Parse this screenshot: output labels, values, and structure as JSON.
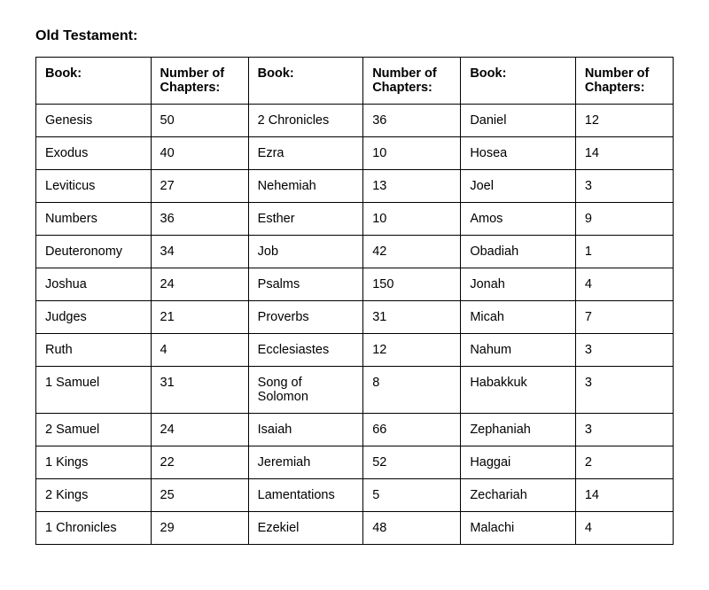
{
  "title": "Old Testament:",
  "table": {
    "columns": [
      "Book:",
      "Number of Chapters:",
      "Book:",
      "Number of Chapters:",
      "Book:",
      "Number of Chapters:"
    ],
    "rows": [
      [
        "Genesis",
        "50",
        "2 Chronicles",
        "36",
        "Daniel",
        "12"
      ],
      [
        "Exodus",
        "40",
        "Ezra",
        "10",
        "Hosea",
        "14"
      ],
      [
        "Leviticus",
        "27",
        "Nehemiah",
        "13",
        "Joel",
        "3"
      ],
      [
        "Numbers",
        "36",
        "Esther",
        "10",
        "Amos",
        "9"
      ],
      [
        "Deuteronomy",
        "34",
        "Job",
        "42",
        "Obadiah",
        "1"
      ],
      [
        "Joshua",
        "24",
        "Psalms",
        "150",
        "Jonah",
        "4"
      ],
      [
        "Judges",
        "21",
        "Proverbs",
        "31",
        "Micah",
        "7"
      ],
      [
        "Ruth",
        "4",
        "Ecclesiastes",
        "12",
        "Nahum",
        "3"
      ],
      [
        "1 Samuel",
        "31",
        "Song of Solomon",
        "8",
        "Habakkuk",
        "3"
      ],
      [
        "2 Samuel",
        "24",
        "Isaiah",
        "66",
        "Zephaniah",
        "3"
      ],
      [
        "1 Kings",
        "22",
        "Jeremiah",
        "52",
        "Haggai",
        "2"
      ],
      [
        "2 Kings",
        "25",
        "Lamentations",
        "5",
        "Zechariah",
        "14"
      ],
      [
        "1 Chronicles",
        "29",
        "Ezekiel",
        "48",
        "Malachi",
        "4"
      ]
    ],
    "border_color": "#000000",
    "background_color": "#ffffff",
    "header_fontweight": "bold",
    "cell_fontsize": 14.5
  }
}
